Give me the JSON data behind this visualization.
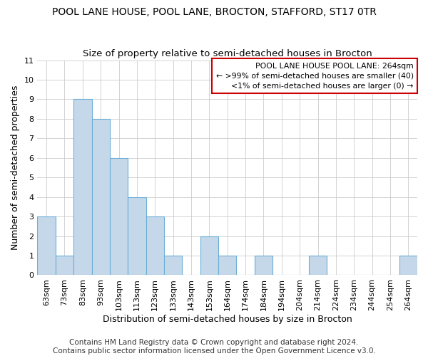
{
  "title": "POOL LANE HOUSE, POOL LANE, BROCTON, STAFFORD, ST17 0TR",
  "subtitle": "Size of property relative to semi-detached houses in Brocton",
  "xlabel": "Distribution of semi-detached houses by size in Brocton",
  "ylabel": "Number of semi-detached properties",
  "categories": [
    "63sqm",
    "73sqm",
    "83sqm",
    "93sqm",
    "103sqm",
    "113sqm",
    "123sqm",
    "133sqm",
    "143sqm",
    "153sqm",
    "164sqm",
    "174sqm",
    "184sqm",
    "194sqm",
    "204sqm",
    "214sqm",
    "224sqm",
    "234sqm",
    "244sqm",
    "254sqm",
    "264sqm"
  ],
  "values": [
    3,
    1,
    9,
    8,
    6,
    4,
    3,
    1,
    0,
    2,
    1,
    0,
    1,
    0,
    0,
    1,
    0,
    0,
    0,
    0,
    1
  ],
  "bar_color": "#c5d8ea",
  "bar_edge_color": "#6aaed6",
  "ylim": [
    0,
    11
  ],
  "yticks": [
    0,
    1,
    2,
    3,
    4,
    5,
    6,
    7,
    8,
    9,
    10,
    11
  ],
  "legend_title": "POOL LANE HOUSE POOL LANE: 264sqm",
  "legend_line1": "← >99% of semi-detached houses are smaller (40)",
  "legend_line2": "<1% of semi-detached houses are larger (0) →",
  "legend_box_color": "#ffffff",
  "legend_box_edge": "#cc0000",
  "footer": "Contains HM Land Registry data © Crown copyright and database right 2024.\nContains public sector information licensed under the Open Government Licence v3.0.",
  "title_fontsize": 10,
  "subtitle_fontsize": 9.5,
  "xlabel_fontsize": 9,
  "ylabel_fontsize": 9,
  "tick_fontsize": 8,
  "footer_fontsize": 7.5
}
